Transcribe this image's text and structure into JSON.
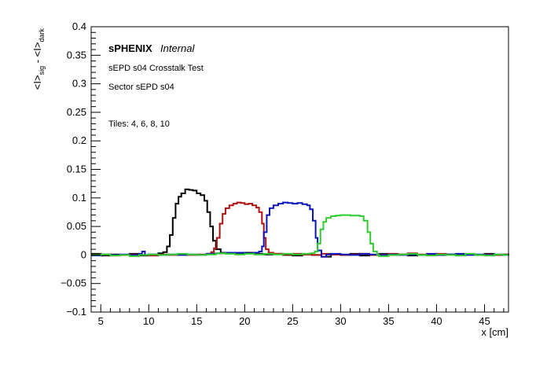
{
  "chart_data": {
    "type": "line",
    "annotations": {
      "experiment": "sPHENIX",
      "status": "Internal",
      "line1": "sEPD s04 Crosstalk Test",
      "line2": "Sector sEPD s04",
      "line3": "Tiles: 4, 6, 8, 10"
    },
    "xlabel": "x [cm]",
    "ylabel_parts": [
      "<I>",
      "sig",
      " - <I>",
      "dark"
    ],
    "xlim": [
      4,
      47.5
    ],
    "ylim": [
      -0.1,
      0.4
    ],
    "x_ticks": [
      5,
      10,
      15,
      20,
      25,
      30,
      35,
      40,
      45
    ],
    "y_ticks": [
      -0.1,
      -0.05,
      0,
      0.05,
      0.1,
      0.15,
      0.2,
      0.25,
      0.3,
      0.35,
      0.4
    ],
    "y_tick_labels": [
      "−0.1",
      "−0.05",
      "0",
      "0.05",
      "0.1",
      "0.15",
      "0.2",
      "0.25",
      "0.3",
      "0.35",
      "0.4"
    ],
    "grid": false,
    "legend": "none",
    "series": [
      {
        "color": "#000000",
        "points": [
          [
            4,
            0.002
          ],
          [
            5,
            -0.001
          ],
          [
            6,
            0.001
          ],
          [
            7,
            0.0
          ],
          [
            8,
            0.002
          ],
          [
            9,
            -0.001
          ],
          [
            10,
            0.001
          ],
          [
            11,
            0.003
          ],
          [
            11.5,
            0.005
          ],
          [
            11.9,
            0.015
          ],
          [
            12.2,
            0.035
          ],
          [
            12.5,
            0.065
          ],
          [
            12.8,
            0.09
          ],
          [
            13.1,
            0.102
          ],
          [
            13.4,
            0.108
          ],
          [
            13.8,
            0.115
          ],
          [
            14.2,
            0.114
          ],
          [
            14.6,
            0.113
          ],
          [
            15.0,
            0.108
          ],
          [
            15.4,
            0.105
          ],
          [
            15.8,
            0.095
          ],
          [
            16.1,
            0.075
          ],
          [
            16.4,
            0.05
          ],
          [
            16.7,
            0.025
          ],
          [
            17.0,
            0.01
          ],
          [
            17.5,
            0.004
          ],
          [
            18,
            0.003
          ],
          [
            19,
            0.002
          ],
          [
            20,
            0.004
          ],
          [
            21,
            0.002
          ],
          [
            22,
            0.001
          ],
          [
            23,
            0.002
          ],
          [
            24,
            0.0
          ],
          [
            25,
            -0.001
          ],
          [
            26,
            0.001
          ],
          [
            27,
            0.0
          ],
          [
            28,
            -0.003
          ],
          [
            29,
            0.001
          ],
          [
            30,
            0.0
          ],
          [
            31,
            0.002
          ],
          [
            32,
            -0.001
          ],
          [
            33,
            0.0
          ],
          [
            34,
            0.002
          ],
          [
            35,
            0.0
          ],
          [
            36,
            0.001
          ],
          [
            37,
            -0.001
          ],
          [
            38,
            0.0
          ],
          [
            39,
            0.001
          ],
          [
            40,
            0.0
          ],
          [
            41,
            0.001
          ],
          [
            42,
            0.0
          ],
          [
            43,
            0.001
          ],
          [
            44,
            0.0
          ],
          [
            45,
            0.002
          ],
          [
            46,
            0.0
          ],
          [
            47,
            0.001
          ],
          [
            47.5,
            0.0
          ]
        ]
      },
      {
        "color": "#b01010",
        "points": [
          [
            4,
            0.0
          ],
          [
            5,
            0.001
          ],
          [
            6,
            -0.001
          ],
          [
            7,
            0.0
          ],
          [
            8,
            0.001
          ],
          [
            9,
            0.0
          ],
          [
            10,
            -0.001
          ],
          [
            11,
            0.001
          ],
          [
            12,
            0.0
          ],
          [
            13,
            0.001
          ],
          [
            14,
            0.0
          ],
          [
            15,
            0.001
          ],
          [
            16,
            0.002
          ],
          [
            16.5,
            0.005
          ],
          [
            16.8,
            0.012
          ],
          [
            17.1,
            0.03
          ],
          [
            17.4,
            0.055
          ],
          [
            17.7,
            0.072
          ],
          [
            18.0,
            0.082
          ],
          [
            18.4,
            0.087
          ],
          [
            18.8,
            0.09
          ],
          [
            19.2,
            0.092
          ],
          [
            19.6,
            0.091
          ],
          [
            20.0,
            0.089
          ],
          [
            20.4,
            0.09
          ],
          [
            20.8,
            0.087
          ],
          [
            21.2,
            0.083
          ],
          [
            21.5,
            0.075
          ],
          [
            21.8,
            0.055
          ],
          [
            22.0,
            0.03
          ],
          [
            22.2,
            0.01
          ],
          [
            22.5,
            0.004
          ],
          [
            23,
            0.002
          ],
          [
            24,
            0.001
          ],
          [
            25,
            0.002
          ],
          [
            26,
            0.001
          ],
          [
            27,
            0.0
          ],
          [
            28,
            0.002
          ],
          [
            29,
            0.001
          ],
          [
            30,
            0.0
          ],
          [
            31,
            0.001
          ],
          [
            32,
            0.002
          ],
          [
            33,
            0.0
          ],
          [
            34,
            0.001
          ],
          [
            35,
            0.002
          ],
          [
            36,
            0.001
          ],
          [
            37,
            0.003
          ],
          [
            38,
            0.001
          ],
          [
            39,
            0.0
          ],
          [
            40,
            0.002
          ],
          [
            41,
            0.001
          ],
          [
            42,
            0.0
          ],
          [
            43,
            0.001
          ],
          [
            44,
            0.0
          ],
          [
            45,
            0.001
          ],
          [
            46,
            0.0
          ],
          [
            47,
            0.001
          ],
          [
            47.5,
            0.0
          ]
        ]
      },
      {
        "color": "#0a14b8",
        "points": [
          [
            4,
            -0.001
          ],
          [
            5,
            0.001
          ],
          [
            6,
            0.0
          ],
          [
            7,
            0.001
          ],
          [
            8,
            0.0
          ],
          [
            9,
            0.002
          ],
          [
            9.3,
            0.006
          ],
          [
            9.6,
            0.0
          ],
          [
            10,
            0.001
          ],
          [
            11,
            0.0
          ],
          [
            12,
            0.001
          ],
          [
            13,
            0.0
          ],
          [
            14,
            0.001
          ],
          [
            15,
            0.0
          ],
          [
            16,
            0.002
          ],
          [
            17,
            0.003
          ],
          [
            18,
            0.004
          ],
          [
            19,
            0.004
          ],
          [
            20,
            0.003
          ],
          [
            21,
            0.004
          ],
          [
            21.5,
            0.006
          ],
          [
            21.8,
            0.015
          ],
          [
            22.0,
            0.04
          ],
          [
            22.3,
            0.07
          ],
          [
            22.6,
            0.082
          ],
          [
            23.0,
            0.087
          ],
          [
            23.5,
            0.09
          ],
          [
            24.0,
            0.092
          ],
          [
            24.5,
            0.091
          ],
          [
            25.0,
            0.09
          ],
          [
            25.5,
            0.091
          ],
          [
            26.0,
            0.089
          ],
          [
            26.5,
            0.087
          ],
          [
            26.8,
            0.08
          ],
          [
            27.1,
            0.06
          ],
          [
            27.4,
            0.03
          ],
          [
            27.6,
            0.008
          ],
          [
            28,
            -0.003
          ],
          [
            28.5,
            0.001
          ],
          [
            29,
            0.002
          ],
          [
            30,
            0.001
          ],
          [
            31,
            0.0
          ],
          [
            32,
            0.002
          ],
          [
            33,
            0.001
          ],
          [
            34,
            0.0
          ],
          [
            35,
            0.001
          ],
          [
            36,
            0.0
          ],
          [
            37,
            0.001
          ],
          [
            38,
            0.0
          ],
          [
            39,
            0.002
          ],
          [
            40,
            0.0
          ],
          [
            41,
            0.001
          ],
          [
            42,
            0.002
          ],
          [
            43,
            0.0
          ],
          [
            44,
            0.001
          ],
          [
            45,
            0.0
          ],
          [
            46,
            0.001
          ],
          [
            47,
            0.0
          ],
          [
            47.5,
            0.001
          ]
        ]
      },
      {
        "color": "#2ecc2e",
        "points": [
          [
            4,
            0.0
          ],
          [
            5,
            0.001
          ],
          [
            6,
            -0.001
          ],
          [
            7,
            0.0
          ],
          [
            8,
            -0.002
          ],
          [
            9,
            0.0
          ],
          [
            10,
            0.001
          ],
          [
            11,
            0.0
          ],
          [
            12,
            0.001
          ],
          [
            13,
            0.002
          ],
          [
            14,
            0.001
          ],
          [
            15,
            0.0
          ],
          [
            16,
            0.001
          ],
          [
            17,
            0.003
          ],
          [
            18,
            0.002
          ],
          [
            19,
            0.001
          ],
          [
            20,
            0.002
          ],
          [
            21,
            0.001
          ],
          [
            22,
            0.002
          ],
          [
            23,
            0.001
          ],
          [
            24,
            0.002
          ],
          [
            25,
            0.001
          ],
          [
            26,
            0.002
          ],
          [
            26.8,
            0.003
          ],
          [
            27.3,
            0.006
          ],
          [
            27.6,
            0.02
          ],
          [
            27.9,
            0.045
          ],
          [
            28.2,
            0.058
          ],
          [
            28.5,
            0.065
          ],
          [
            29.0,
            0.068
          ],
          [
            29.5,
            0.069
          ],
          [
            30.0,
            0.07
          ],
          [
            30.5,
            0.07
          ],
          [
            31.0,
            0.069
          ],
          [
            31.5,
            0.069
          ],
          [
            32.0,
            0.068
          ],
          [
            32.4,
            0.06
          ],
          [
            32.8,
            0.04
          ],
          [
            33.1,
            0.02
          ],
          [
            33.4,
            0.006
          ],
          [
            33.8,
            0.001
          ],
          [
            34,
            -0.002
          ],
          [
            35,
            0.0
          ],
          [
            36,
            0.001
          ],
          [
            37,
            0.002
          ],
          [
            38,
            0.0
          ],
          [
            39,
            -0.001
          ],
          [
            40,
            0.001
          ],
          [
            41,
            0.0
          ],
          [
            42,
            -0.001
          ],
          [
            43,
            0.002
          ],
          [
            44,
            0.0
          ],
          [
            45,
            -0.001
          ],
          [
            46,
            0.001
          ],
          [
            47,
            0.0
          ],
          [
            47.5,
            0.001
          ]
        ]
      }
    ]
  }
}
